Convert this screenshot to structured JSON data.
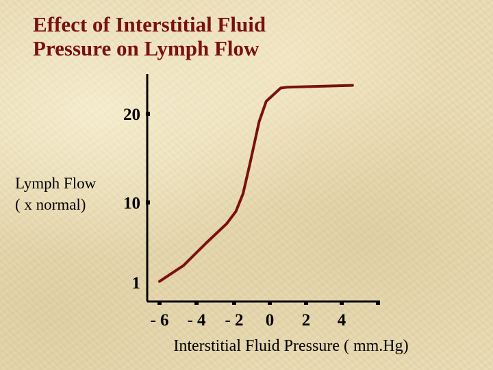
{
  "title_lines": [
    "Effect of Interstitial Fluid",
    "Pressure on Lymph Flow"
  ],
  "ylabel_lines": [
    "Lymph Flow",
    "( x normal)"
  ],
  "colors": {
    "curve": "#7a1010",
    "title": "#7a1010",
    "axis": "#000000",
    "background": "#e9dcb4"
  },
  "chart_data": {
    "type": "line",
    "title": "Effect of Interstitial Fluid Pressure on Lymph Flow",
    "xlabel": "Interstitial Fluid Pressure ( mm.Hg)",
    "ylabel": "Lymph Flow ( x normal)",
    "x_ticks": [
      {
        "value": -6,
        "label": "- 6"
      },
      {
        "value": -4,
        "label": "- 4"
      },
      {
        "value": -2,
        "label": "- 2"
      },
      {
        "value": 0,
        "label": "0"
      },
      {
        "value": 2,
        "label": "2"
      },
      {
        "value": 4,
        "label": "4"
      }
    ],
    "y_ticks": [
      {
        "value": 1,
        "label": "1"
      },
      {
        "value": 10,
        "label": "10"
      },
      {
        "value": 20,
        "label": "20"
      }
    ],
    "xlim": [
      -6,
      6
    ],
    "ylim": [
      0,
      22
    ],
    "grid": false,
    "series": [
      {
        "values": [
          [
            -6.0,
            1.1
          ],
          [
            -4.7,
            2.9
          ],
          [
            -3.5,
            5.4
          ],
          [
            -2.4,
            7.6
          ],
          [
            -1.9,
            9.0
          ],
          [
            -1.5,
            11.0
          ],
          [
            -1.1,
            14.5
          ],
          [
            -0.6,
            19.1
          ],
          [
            -0.2,
            21.4
          ],
          [
            0.6,
            22.9
          ],
          [
            1.0,
            23.0
          ],
          [
            4.6,
            23.2
          ]
        ]
      }
    ]
  }
}
